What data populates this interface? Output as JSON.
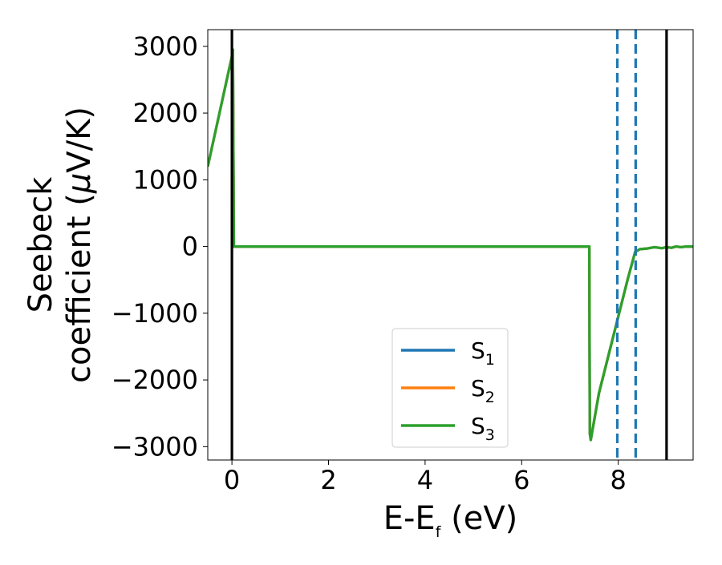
{
  "chart_data": {
    "type": "line",
    "xlabel": "E-E",
    "xlabel_sub": "f",
    "xlabel_unit": " (eV)",
    "ylabel_line1": "Seebeck",
    "ylabel_line2_prefix": "coefficient  (",
    "ylabel_mu": "μ",
    "ylabel_line2_suffix": "V/K)",
    "xlim": [
      -0.5,
      9.55
    ],
    "ylim": [
      -3200,
      3250
    ],
    "xticks": [
      0,
      2,
      4,
      6,
      8
    ],
    "xtick_labels": [
      "0",
      "2",
      "4",
      "6",
      "8"
    ],
    "yticks": [
      3000,
      2000,
      1000,
      0,
      -1000,
      -2000,
      -3000
    ],
    "ytick_labels": [
      "3000",
      "2000",
      "1000",
      "0",
      "−1000",
      "−2000",
      "−3000"
    ],
    "grid": false,
    "legend_position": "lower-center",
    "vlines_solid": [
      0,
      9.0
    ],
    "vlines_dashed": [
      7.98,
      8.36
    ],
    "vline_solid_color": "#000000",
    "vline_dashed_color": "#1f77b4",
    "series": [
      {
        "name": "S",
        "sub": "1",
        "color": "#1f77b4",
        "x": [
          -0.5,
          0.0,
          0.02,
          0.04,
          7.4,
          7.41,
          7.43,
          7.6,
          8.0,
          8.2,
          8.35,
          8.45,
          8.6,
          8.75,
          8.9,
          9.0,
          9.1,
          9.2,
          9.3,
          9.4,
          9.55
        ],
        "y": [
          1200,
          2850,
          2950,
          0,
          0,
          -2800,
          -2900,
          -2200,
          -1050,
          -480,
          -80,
          -40,
          -30,
          -10,
          -25,
          -10,
          -20,
          0,
          -10,
          0,
          0
        ]
      },
      {
        "name": "S",
        "sub": "2",
        "color": "#ff7f0e",
        "x": [
          -0.5,
          0.0,
          0.02,
          0.04,
          7.4,
          7.41,
          7.43,
          7.6,
          8.0,
          8.2,
          8.35,
          8.45,
          8.6,
          8.75,
          8.9,
          9.0,
          9.1,
          9.2,
          9.3,
          9.4,
          9.55
        ],
        "y": [
          1200,
          2850,
          2950,
          0,
          0,
          -2800,
          -2900,
          -2200,
          -1050,
          -480,
          -80,
          -40,
          -30,
          -10,
          -25,
          -10,
          -20,
          0,
          -10,
          0,
          0
        ]
      },
      {
        "name": "S",
        "sub": "3",
        "color": "#2ca02c",
        "x": [
          -0.5,
          0.0,
          0.02,
          0.04,
          7.4,
          7.41,
          7.43,
          7.6,
          8.0,
          8.2,
          8.35,
          8.45,
          8.6,
          8.75,
          8.9,
          9.0,
          9.1,
          9.2,
          9.3,
          9.4,
          9.55
        ],
        "y": [
          1200,
          2850,
          2950,
          0,
          0,
          -2800,
          -2900,
          -2200,
          -1050,
          -480,
          -80,
          -40,
          -30,
          -10,
          -25,
          -10,
          -20,
          0,
          -10,
          0,
          0
        ]
      }
    ]
  }
}
